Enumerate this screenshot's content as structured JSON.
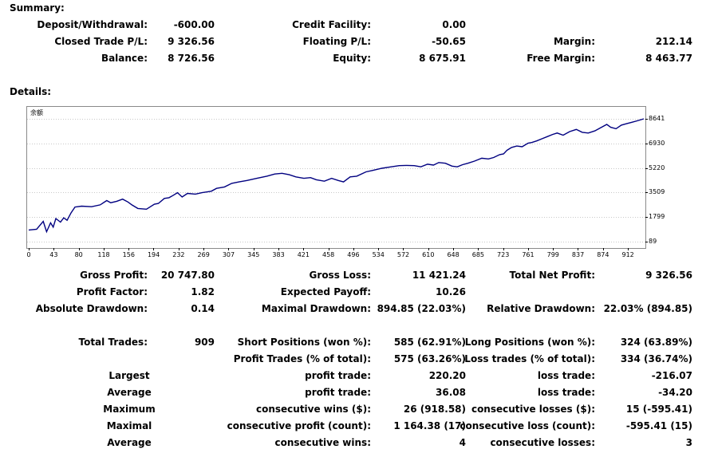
{
  "summary": {
    "heading": "Summary:",
    "rows": [
      [
        {
          "label": "Deposit/Withdrawal:",
          "value": "-600.00"
        },
        {
          "label": "Credit Facility:",
          "value": "0.00"
        },
        {
          "label": "",
          "value": ""
        }
      ],
      [
        {
          "label": "Closed Trade P/L:",
          "value": "9 326.56"
        },
        {
          "label": "Floating P/L:",
          "value": "-50.65"
        },
        {
          "label": "Margin:",
          "value": "212.14"
        }
      ],
      [
        {
          "label": "Balance:",
          "value": "8 726.56"
        },
        {
          "label": "Equity:",
          "value": "8 675.91"
        },
        {
          "label": "Free Margin:",
          "value": "8 463.77"
        }
      ]
    ]
  },
  "details": {
    "heading": "Details:",
    "chart_data": {
      "type": "line",
      "series": [
        {
          "name": "余额",
          "color": "#000080"
        }
      ],
      "x_ticks": [
        "0",
        "43",
        "80",
        "118",
        "156",
        "194",
        "232",
        "269",
        "307",
        "345",
        "383",
        "421",
        "458",
        "496",
        "534",
        "572",
        "610",
        "648",
        "685",
        "723",
        "761",
        "799",
        "837",
        "874",
        "912"
      ],
      "y_ticks": [
        "8641",
        "6930",
        "5220",
        "3509",
        "1799",
        "89"
      ],
      "xlim": [
        0,
        930
      ],
      "ylim": [
        89,
        8641
      ],
      "points": [
        [
          0,
          900
        ],
        [
          12,
          950
        ],
        [
          22,
          1500
        ],
        [
          27,
          780
        ],
        [
          33,
          1400
        ],
        [
          37,
          1100
        ],
        [
          41,
          1700
        ],
        [
          48,
          1450
        ],
        [
          53,
          1750
        ],
        [
          58,
          1580
        ],
        [
          64,
          2100
        ],
        [
          70,
          2500
        ],
        [
          80,
          2560
        ],
        [
          95,
          2520
        ],
        [
          108,
          2650
        ],
        [
          118,
          2950
        ],
        [
          124,
          2800
        ],
        [
          133,
          2900
        ],
        [
          142,
          3050
        ],
        [
          150,
          2850
        ],
        [
          156,
          2650
        ],
        [
          165,
          2400
        ],
        [
          178,
          2350
        ],
        [
          190,
          2700
        ],
        [
          196,
          2750
        ],
        [
          205,
          3100
        ],
        [
          212,
          3150
        ],
        [
          218,
          3300
        ],
        [
          225,
          3500
        ],
        [
          232,
          3200
        ],
        [
          240,
          3450
        ],
        [
          252,
          3400
        ],
        [
          262,
          3500
        ],
        [
          269,
          3550
        ],
        [
          276,
          3600
        ],
        [
          284,
          3800
        ],
        [
          296,
          3900
        ],
        [
          307,
          4150
        ],
        [
          318,
          4250
        ],
        [
          330,
          4350
        ],
        [
          345,
          4500
        ],
        [
          360,
          4650
        ],
        [
          372,
          4800
        ],
        [
          383,
          4850
        ],
        [
          394,
          4750
        ],
        [
          404,
          4600
        ],
        [
          416,
          4500
        ],
        [
          426,
          4550
        ],
        [
          435,
          4400
        ],
        [
          447,
          4300
        ],
        [
          458,
          4500
        ],
        [
          468,
          4350
        ],
        [
          476,
          4250
        ],
        [
          486,
          4600
        ],
        [
          496,
          4650
        ],
        [
          510,
          4950
        ],
        [
          520,
          5050
        ],
        [
          534,
          5200
        ],
        [
          548,
          5300
        ],
        [
          560,
          5380
        ],
        [
          572,
          5400
        ],
        [
          583,
          5380
        ],
        [
          593,
          5300
        ],
        [
          603,
          5480
        ],
        [
          612,
          5420
        ],
        [
          620,
          5600
        ],
        [
          630,
          5550
        ],
        [
          640,
          5350
        ],
        [
          648,
          5300
        ],
        [
          656,
          5450
        ],
        [
          664,
          5550
        ],
        [
          674,
          5700
        ],
        [
          685,
          5900
        ],
        [
          695,
          5850
        ],
        [
          703,
          5950
        ],
        [
          712,
          6150
        ],
        [
          718,
          6200
        ],
        [
          723,
          6450
        ],
        [
          730,
          6650
        ],
        [
          738,
          6750
        ],
        [
          746,
          6700
        ],
        [
          755,
          6950
        ],
        [
          761,
          7000
        ],
        [
          768,
          7100
        ],
        [
          776,
          7250
        ],
        [
          784,
          7400
        ],
        [
          792,
          7550
        ],
        [
          799,
          7650
        ],
        [
          808,
          7500
        ],
        [
          818,
          7750
        ],
        [
          828,
          7900
        ],
        [
          837,
          7700
        ],
        [
          846,
          7650
        ],
        [
          856,
          7800
        ],
        [
          864,
          8000
        ],
        [
          874,
          8250
        ],
        [
          880,
          8050
        ],
        [
          888,
          7950
        ],
        [
          896,
          8200
        ],
        [
          904,
          8300
        ],
        [
          912,
          8400
        ],
        [
          920,
          8500
        ],
        [
          930,
          8641
        ]
      ]
    }
  },
  "stats": {
    "rows": [
      [
        {
          "label": "Gross Profit:",
          "value": "20 747.80"
        },
        {
          "label": "Gross Loss:",
          "value": "11 421.24"
        },
        {
          "label": "Total Net Profit:",
          "value": "9 326.56"
        }
      ],
      [
        {
          "label": "Profit Factor:",
          "value": "1.82"
        },
        {
          "label": "Expected Payoff:",
          "value": "10.26"
        },
        {
          "label": "",
          "value": ""
        }
      ],
      [
        {
          "label": "Absolute Drawdown:",
          "value": "0.14"
        },
        {
          "label": "Maximal Drawdown:",
          "value": "894.85 (22.03%)"
        },
        {
          "label": "Relative Drawdown:",
          "value": "22.03% (894.85)"
        }
      ]
    ],
    "trades": {
      "total_label": "Total Trades:",
      "total_value": "909",
      "short_label": "Short Positions (won %):",
      "short_value": "585 (62.91%)",
      "long_label": "Long Positions (won %):",
      "long_value": "324 (63.89%)",
      "profit_trades_label": "Profit Trades (% of total):",
      "profit_trades_value": "575 (63.26%)",
      "loss_trades_label": "Loss trades (% of total):",
      "loss_trades_value": "334 (36.74%)"
    },
    "extra_rows": [
      {
        "a": "Largest",
        "b": "profit trade:",
        "b_val": "220.20",
        "c": "loss trade:",
        "c_val": "-216.07"
      },
      {
        "a": "Average",
        "b": "profit trade:",
        "b_val": "36.08",
        "c": "loss trade:",
        "c_val": "-34.20"
      },
      {
        "a": "Maximum",
        "b": "consecutive wins ($):",
        "b_val": "26 (918.58)",
        "c": "consecutive losses ($):",
        "c_val": "15 (-595.41)"
      },
      {
        "a": "Maximal",
        "b": "consecutive profit (count):",
        "b_val": "1 164.38 (17)",
        "c": "consecutive loss (count):",
        "c_val": "-595.41 (15)"
      },
      {
        "a": "Average",
        "b": "consecutive wins:",
        "b_val": "4",
        "c": "consecutive losses:",
        "c_val": "3"
      }
    ]
  }
}
